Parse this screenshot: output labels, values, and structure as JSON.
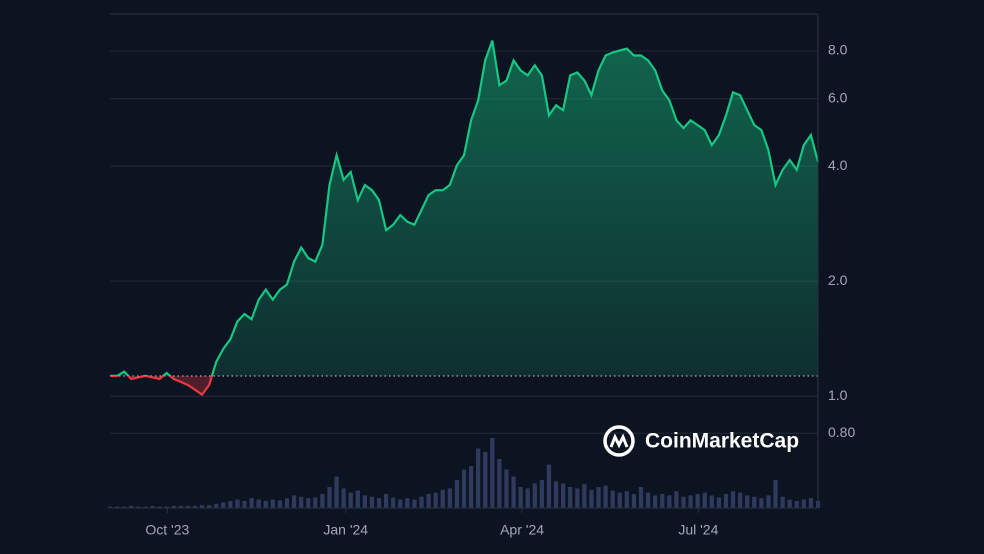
{
  "chart_data": {
    "type": "line",
    "watermark": "CoinMarketCap",
    "log_scale": true,
    "grid": true,
    "baseline": 1.13,
    "up_color": "#16c784",
    "down_color": "#ea3943",
    "xlim": [
      0,
      100
    ],
    "xticks": [
      {
        "value": 8.1,
        "label": "Oct '23"
      },
      {
        "value": 33.3,
        "label": "Jan '24"
      },
      {
        "value": 58.2,
        "label": "Apr '24"
      },
      {
        "value": 83.1,
        "label": "Jul '24"
      }
    ],
    "ylim": [
      0.51,
      10
    ],
    "yticks": [
      {
        "value": 0.8,
        "label": "0.80"
      },
      {
        "value": 1,
        "label": "1.0"
      },
      {
        "value": 2,
        "label": "2.0"
      },
      {
        "value": 4,
        "label": "4.0"
      },
      {
        "value": 6,
        "label": "6.0"
      },
      {
        "value": 8,
        "label": "8.0"
      }
    ],
    "y2lim": [
      0,
      100
    ],
    "series": [
      {
        "name": "Price",
        "color": "#16c784",
        "values": [
          1.13,
          1.13,
          1.16,
          1.11,
          1.12,
          1.13,
          1.12,
          1.11,
          1.15,
          1.11,
          1.09,
          1.07,
          1.04,
          1.01,
          1.07,
          1.23,
          1.33,
          1.41,
          1.57,
          1.64,
          1.59,
          1.79,
          1.9,
          1.79,
          1.9,
          1.96,
          2.25,
          2.45,
          2.3,
          2.25,
          2.49,
          3.57,
          4.27,
          3.68,
          3.86,
          3.26,
          3.57,
          3.46,
          3.26,
          2.72,
          2.81,
          2.98,
          2.86,
          2.81,
          3.07,
          3.36,
          3.46,
          3.46,
          3.57,
          4.02,
          4.27,
          5.27,
          5.95,
          7.56,
          8.52,
          6.51,
          6.7,
          7.56,
          7.12,
          6.91,
          7.34,
          6.91,
          5.43,
          5.77,
          5.6,
          6.91,
          7.03,
          6.7,
          6.13,
          7.12,
          7.79,
          7.93,
          8.03,
          8.12,
          7.79,
          7.79,
          7.56,
          7.12,
          6.31,
          5.95,
          5.27,
          5.03,
          5.27,
          5.12,
          4.97,
          4.54,
          4.82,
          5.43,
          6.24,
          6.13,
          5.6,
          5.12,
          4.97,
          4.4,
          3.57,
          3.91,
          4.15,
          3.91,
          4.54,
          4.82,
          4.1
        ]
      },
      {
        "name": "Volume",
        "color": "#2f3a5e",
        "axis": "y2",
        "values": [
          2,
          2,
          2,
          3,
          2,
          2,
          3,
          2,
          2,
          3,
          3,
          3,
          3,
          4,
          4,
          6,
          8,
          10,
          12,
          10,
          14,
          12,
          10,
          12,
          11,
          14,
          18,
          16,
          14,
          15,
          20,
          30,
          45,
          28,
          22,
          25,
          18,
          16,
          14,
          20,
          15,
          12,
          14,
          12,
          16,
          20,
          22,
          26,
          28,
          40,
          55,
          60,
          85,
          80,
          100,
          70,
          55,
          45,
          30,
          28,
          35,
          40,
          62,
          38,
          35,
          30,
          28,
          34,
          26,
          30,
          32,
          25,
          22,
          24,
          20,
          30,
          22,
          18,
          20,
          18,
          24,
          16,
          18,
          20,
          22,
          18,
          15,
          20,
          24,
          22,
          18,
          16,
          14,
          18,
          40,
          16,
          12,
          10,
          12,
          14,
          10
        ]
      }
    ]
  }
}
